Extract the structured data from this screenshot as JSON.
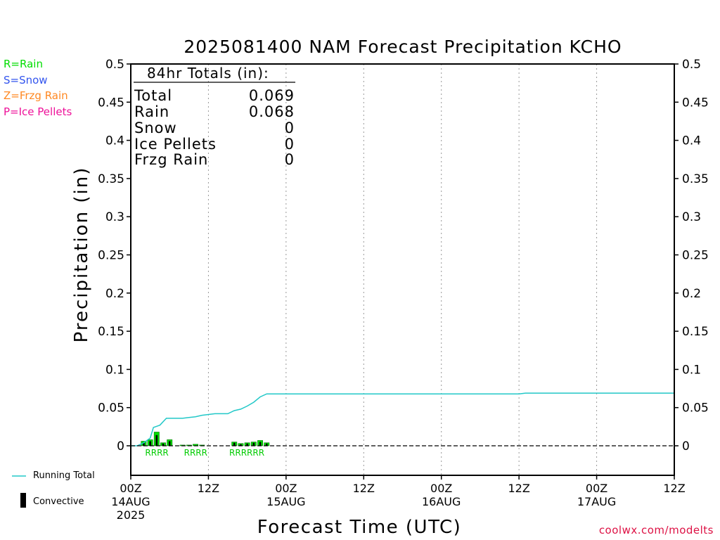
{
  "chart_data": {
    "type": "bar",
    "title": "2025081400 NAM Forecast Precipitation KCHO",
    "xlabel": "Forecast Time (UTC)",
    "ylabel": "Precipitation (in)",
    "ylim": [
      0,
      0.5
    ],
    "yticks": [
      "0",
      "0.05",
      "0.1",
      "0.15",
      "0.2",
      "0.25",
      "0.3",
      "0.35",
      "0.4",
      "0.45",
      "0.5"
    ],
    "x_range_hours": [
      0,
      84
    ],
    "x_ticks": [
      {
        "hour": 0,
        "top": "00Z",
        "mid": "14AUG",
        "bottom": "2025"
      },
      {
        "hour": 12,
        "top": "12Z",
        "mid": "",
        "bottom": ""
      },
      {
        "hour": 24,
        "top": "00Z",
        "mid": "15AUG",
        "bottom": ""
      },
      {
        "hour": 36,
        "top": "12Z",
        "mid": "",
        "bottom": ""
      },
      {
        "hour": 48,
        "top": "00Z",
        "mid": "16AUG",
        "bottom": ""
      },
      {
        "hour": 60,
        "top": "12Z",
        "mid": "",
        "bottom": ""
      },
      {
        "hour": 72,
        "top": "00Z",
        "mid": "17AUG",
        "bottom": ""
      },
      {
        "hour": 84,
        "top": "12Z",
        "mid": "",
        "bottom": ""
      }
    ],
    "grid": "vertical dotted at 12-hour ticks",
    "series": [
      {
        "name": "Running Total",
        "type": "line",
        "color": "#22c8c8",
        "points": [
          [
            0,
            0
          ],
          [
            1,
            0
          ],
          [
            2,
            0.004
          ],
          [
            3,
            0.01
          ],
          [
            3.5,
            0.024
          ],
          [
            4.5,
            0.027
          ],
          [
            5.5,
            0.036
          ],
          [
            7,
            0.036
          ],
          [
            8,
            0.036
          ],
          [
            9,
            0.037
          ],
          [
            10,
            0.038
          ],
          [
            11,
            0.04
          ],
          [
            12,
            0.041
          ],
          [
            13,
            0.042
          ],
          [
            14,
            0.042
          ],
          [
            15,
            0.042
          ],
          [
            16,
            0.046
          ],
          [
            17,
            0.048
          ],
          [
            18,
            0.052
          ],
          [
            19,
            0.057
          ],
          [
            20,
            0.064
          ],
          [
            21,
            0.068
          ],
          [
            24,
            0.068
          ],
          [
            36,
            0.068
          ],
          [
            48,
            0.068
          ],
          [
            60,
            0.068
          ],
          [
            61,
            0.069
          ],
          [
            84,
            0.069
          ]
        ]
      },
      {
        "name": "Rain",
        "type": "bar",
        "color": "#00dd00",
        "hours": [
          2,
          3,
          4,
          5,
          6,
          8,
          9,
          10,
          11,
          16,
          17,
          18,
          19,
          20,
          21
        ],
        "values": [
          0.006,
          0.008,
          0.018,
          0.004,
          0.008,
          0.001,
          0.001,
          0.002,
          0.001,
          0.005,
          0.003,
          0.004,
          0.005,
          0.007,
          0.004
        ]
      },
      {
        "name": "Convective",
        "type": "bar",
        "color": "#000000",
        "hours": [
          2,
          3,
          4,
          5,
          6,
          16,
          17,
          18,
          19,
          20,
          21
        ],
        "values": [
          0.004,
          0.006,
          0.014,
          0.003,
          0.006,
          0.004,
          0.002,
          0.003,
          0.004,
          0.005,
          0.003
        ]
      }
    ],
    "ptype_marks": {
      "text": [
        "RRRR",
        "RRRR",
        "RRRRRR"
      ],
      "start_hours": [
        2,
        8,
        15
      ],
      "color": "#00cc00"
    }
  },
  "type_legend": {
    "rain": "R=Rain",
    "snow": "S=Snow",
    "frzg": "Z=Frzg Rain",
    "ice": "P=Ice Pellets",
    "colors": {
      "rain": "#00dd00",
      "snow": "#3355ee",
      "frzg": "#ff8822",
      "ice": "#ee1199"
    }
  },
  "series_legend": {
    "running_total": "Running Total",
    "convective": "Convective"
  },
  "totals_box": {
    "header": "84hr Totals (in):",
    "rows": [
      {
        "label": "Total",
        "value": "0.069"
      },
      {
        "label": "Rain",
        "value": "0.068"
      },
      {
        "label": "Snow",
        "value": "0"
      },
      {
        "label": "Ice Pellets",
        "value": "0"
      },
      {
        "label": "Frzg Rain",
        "value": "0"
      }
    ]
  },
  "credit": "coolwx.com/modelts"
}
